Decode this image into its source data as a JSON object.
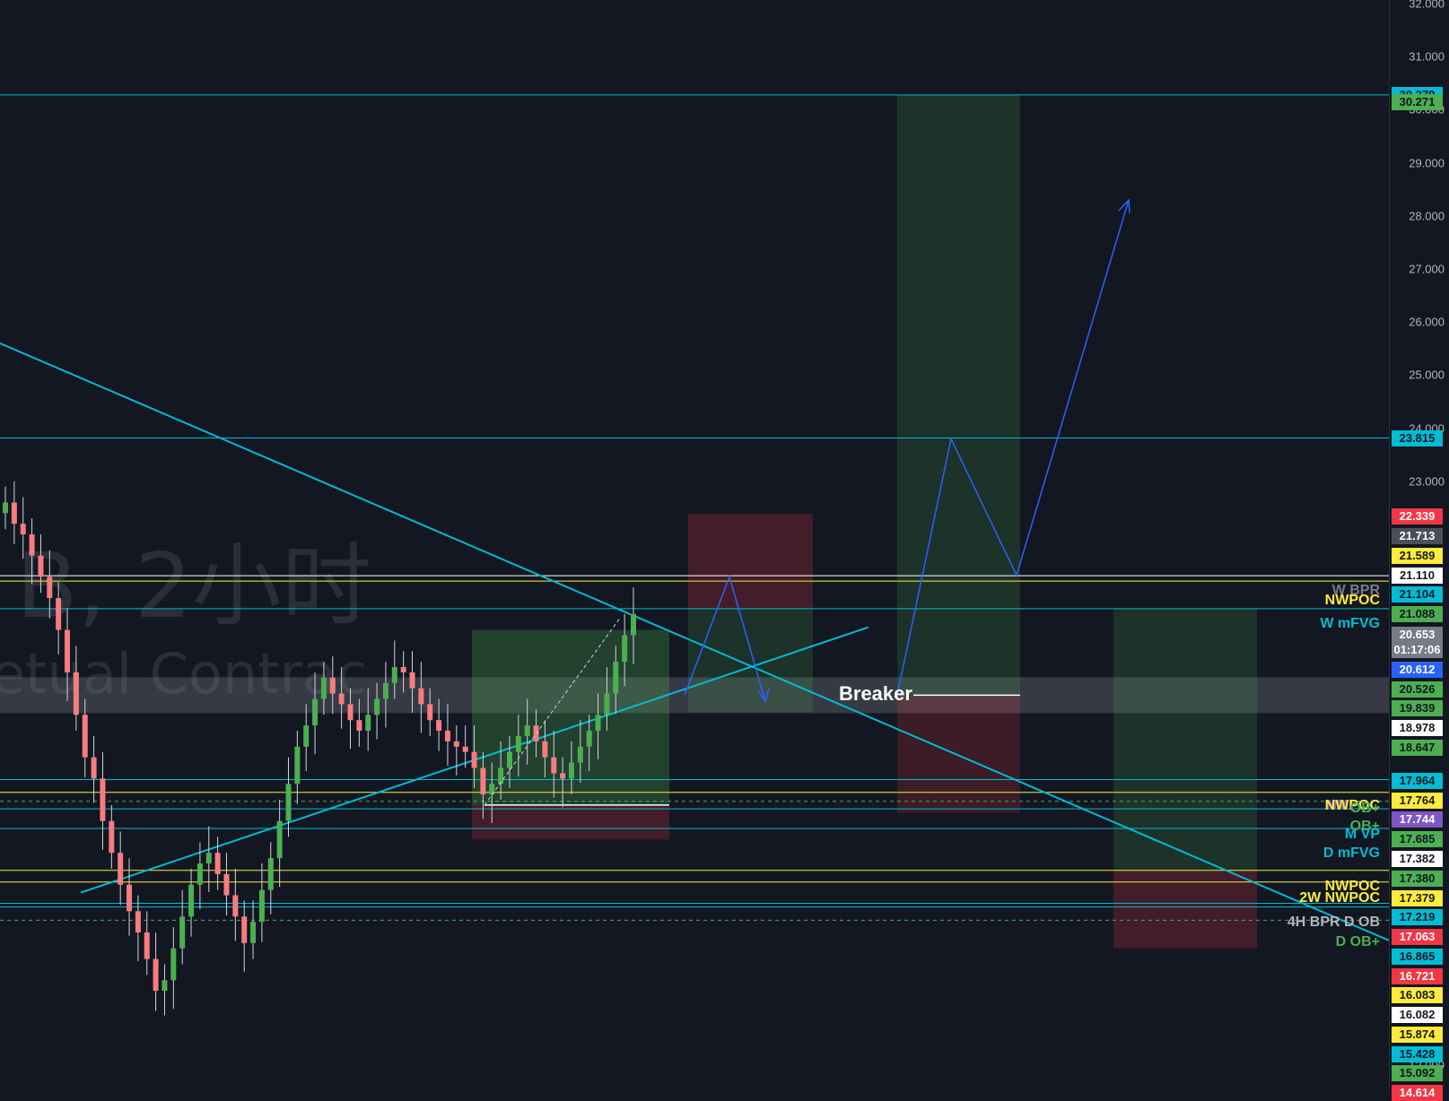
{
  "chart_data": {
    "type": "candlestick",
    "ylim": [
      12.0,
      32.0
    ],
    "y_ticks": [
      "32.000",
      "31.000",
      "30.000",
      "29.000",
      "28.000",
      "27.000",
      "26.000",
      "25.000",
      "24.000",
      "23.000",
      "12.000"
    ],
    "watermark": {
      "title": "B, 2小时",
      "subtitle": "etual Contrac"
    },
    "badges": [
      {
        "label": "30.279",
        "value": 30.279,
        "bg": "#00bcd4",
        "fg": "#131722"
      },
      {
        "label": "30.271",
        "value": 30.15,
        "bg": "#4caf50",
        "fg": "#131722"
      },
      {
        "label": "23.815",
        "value": 23.815,
        "bg": "#00bcd4",
        "fg": "#131722"
      },
      {
        "label": "22.339",
        "value": 22.339,
        "bg": "#f23645",
        "fg": "#ffffff"
      },
      {
        "label": "21.713",
        "value": 21.96,
        "bg": "#4b4f5b",
        "fg": "#ffffff"
      },
      {
        "label": "21.589",
        "value": 21.6,
        "bg": "#ffeb3b",
        "fg": "#131722"
      },
      {
        "label": "21.110",
        "value": 21.23,
        "bg": "#ffffff",
        "fg": "#131722"
      },
      {
        "label": "21.104",
        "value": 20.87,
        "bg": "#00bcd4",
        "fg": "#131722"
      },
      {
        "label": "21.088",
        "value": 20.5,
        "bg": "#4caf50",
        "fg": "#131722"
      },
      {
        "label": "20.653",
        "value": 20.1,
        "bg": "#787b86",
        "fg": "#ffffff"
      },
      {
        "label": "01:17:06",
        "value": 19.82,
        "bg": "#787b86",
        "fg": "#ffffff"
      },
      {
        "label": "20.612",
        "value": 19.45,
        "bg": "#2962ff",
        "fg": "#ffffff"
      },
      {
        "label": "20.526",
        "value": 19.08,
        "bg": "#4caf50",
        "fg": "#131722"
      },
      {
        "label": "19.839",
        "value": 18.72,
        "bg": "#4caf50",
        "fg": "#131722"
      },
      {
        "label": "18.978",
        "value": 18.35,
        "bg": "#ffffff",
        "fg": "#131722"
      },
      {
        "label": "18.647",
        "value": 17.98,
        "bg": "#4caf50",
        "fg": "#131722"
      },
      {
        "label": "17.964",
        "value": 17.35,
        "bg": "#00bcd4",
        "fg": "#131722"
      },
      {
        "label": "17.764",
        "value": 16.98,
        "bg": "#ffeb3b",
        "fg": "#131722"
      },
      {
        "label": "17.744",
        "value": 16.62,
        "bg": "#7e57c2",
        "fg": "#ffffff"
      },
      {
        "label": "17.685",
        "value": 16.25,
        "bg": "#4caf50",
        "fg": "#131722"
      },
      {
        "label": "17.382",
        "value": 15.88,
        "bg": "#ffffff",
        "fg": "#131722"
      },
      {
        "label": "17.380",
        "value": 15.51,
        "bg": "#4caf50",
        "fg": "#131722"
      },
      {
        "label": "17.379",
        "value": 15.15,
        "bg": "#ffeb3b",
        "fg": "#131722"
      },
      {
        "label": "17.219",
        "value": 14.78,
        "bg": "#00bcd4",
        "fg": "#131722"
      },
      {
        "label": "17.063",
        "value": 14.41,
        "bg": "#f23645",
        "fg": "#ffffff"
      },
      {
        "label": "16.865",
        "value": 14.05,
        "bg": "#00bcd4",
        "fg": "#131722"
      },
      {
        "label": "16.721",
        "value": 13.68,
        "bg": "#f23645",
        "fg": "#ffffff"
      },
      {
        "label": "16.083",
        "value": 13.31,
        "bg": "#ffeb3b",
        "fg": "#131722"
      },
      {
        "label": "16.082",
        "value": 12.95,
        "bg": "#ffffff",
        "fg": "#131722"
      },
      {
        "label": "15.874",
        "value": 12.58,
        "bg": "#ffeb3b",
        "fg": "#131722"
      },
      {
        "label": "15.428",
        "value": 12.21,
        "bg": "#00bcd4",
        "fg": "#131722"
      },
      {
        "label": "15.092",
        "value": 11.85,
        "bg": "#4caf50",
        "fg": "#131722"
      },
      {
        "label": "14.614",
        "value": 11.48,
        "bg": "#f23645",
        "fg": "#ffffff"
      }
    ],
    "horizontal_levels": [
      {
        "value": 30.279,
        "color": "#00bcd4",
        "dash": false
      },
      {
        "value": 23.815,
        "color": "#00bcd4",
        "dash": false
      },
      {
        "value": 21.22,
        "color": "#ffffff",
        "dash": false
      },
      {
        "value": 21.12,
        "color": "#ffeb3b",
        "dash": false
      },
      {
        "value": 20.6,
        "color": "#00bcd4",
        "dash": false
      },
      {
        "value": 17.38,
        "color": "#00bcd4",
        "dash": false
      },
      {
        "value": 17.14,
        "color": "#ffeb3b",
        "dash": false
      },
      {
        "value": 16.97,
        "color": "#4caf50",
        "dash": true
      },
      {
        "value": 16.83,
        "color": "#00bcd4",
        "dash": false
      },
      {
        "value": 16.46,
        "color": "#00bcd4",
        "dash": false
      },
      {
        "value": 15.67,
        "color": "#ffeb3b",
        "dash": false
      },
      {
        "value": 15.45,
        "color": "#ffeb3b",
        "dash": false
      },
      {
        "value": 15.05,
        "color": "#00bcd4",
        "dash": false
      },
      {
        "value": 14.98,
        "color": "#00bcd4",
        "dash": false
      },
      {
        "value": 14.73,
        "color": "#4caf50",
        "dash": true
      }
    ],
    "level_labels": [
      {
        "text": "W BPR",
        "value": 20.92,
        "color": "#787b86"
      },
      {
        "text": "NWPOC",
        "value": 20.74,
        "color": "#ffeb3b"
      },
      {
        "text": "W mFVG",
        "value": 20.3,
        "color": "#00bcd4"
      },
      {
        "text": "NMPOC",
        "value": 16.87,
        "color": "#7e57c2"
      },
      {
        "text": "NWPOC",
        "value": 16.87,
        "color": "#ffeb3b"
      },
      {
        "text": "OB+",
        "value": 16.82,
        "color": "#4caf50"
      },
      {
        "text": "OB+",
        "value": 16.47,
        "color": "#4caf50"
      },
      {
        "text": "M VP",
        "value": 16.33,
        "color": "#00bcd4"
      },
      {
        "text": "D mFVG",
        "value": 15.97,
        "color": "#00bcd4"
      },
      {
        "text": "NWPOC",
        "value": 15.35,
        "color": "#ffeb3b"
      },
      {
        "text": "2W NWPOC",
        "value": 15.13,
        "color": "#ffeb3b"
      },
      {
        "text": "4H BPR D OB",
        "value": 14.67,
        "color": "#b2b5be"
      },
      {
        "text": "D OB+",
        "value": 14.3,
        "color": "#4caf50"
      }
    ],
    "annotation": {
      "text": "Breaker",
      "value": 18.97
    }
  }
}
